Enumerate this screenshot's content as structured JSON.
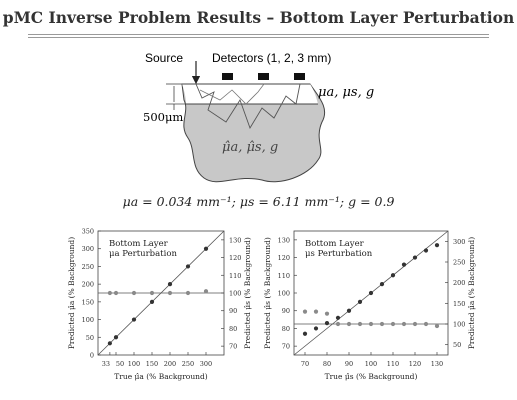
{
  "slide": {
    "title": "pMC Inverse Problem Results – Bottom Layer Perturbation",
    "params": "μa = 0.034 mm⁻¹; μs = 6.11 mm⁻¹; g = 0.9"
  },
  "diagram": {
    "source_label": "Source",
    "detectors_label": "Detectors (1, 2, 3 mm)",
    "top_layer_label": "μa, μs, g",
    "depth_label": "500μm",
    "bottom_layer_label": "μ̂a, μ̂s, g"
  },
  "colors": {
    "points_primary": "#333333",
    "points_secondary": "#8a8a8a",
    "tissue_fill": "#c8c8c8",
    "frame": "#444444"
  },
  "chart_data": [
    {
      "type": "scatter",
      "title": "Bottom Layer μa Perturbation",
      "xlabel": "True μ̂a (% Background)",
      "ylabel_left": "Predicted μ̂a (% Background)",
      "ylabel_right": "Predicted μ̂s (% Background)",
      "xlim": [
        0,
        350
      ],
      "ylim_left": [
        0,
        350
      ],
      "ylim_right": [
        65,
        135
      ],
      "x_ticks": [
        "33",
        "50",
        "100",
        "150",
        "200",
        "250",
        "300"
      ],
      "x_tick_values": [
        33,
        50,
        100,
        150,
        200,
        250,
        300
      ],
      "y_ticks_left": [
        0,
        50,
        100,
        150,
        200,
        250,
        300,
        350
      ],
      "y_ticks_right": [
        70,
        80,
        90,
        100,
        110,
        120,
        130
      ],
      "identity_line": true,
      "reference_line_right": 100,
      "series": [
        {
          "axis": "left",
          "x": [
            33,
            50,
            100,
            150,
            200,
            250,
            300
          ],
          "y": [
            33,
            50,
            100,
            150,
            200,
            250,
            300
          ]
        },
        {
          "axis": "right",
          "x": [
            33,
            50,
            100,
            150,
            200,
            250,
            300
          ],
          "y": [
            100,
            100,
            100,
            100,
            100,
            100,
            101
          ]
        }
      ]
    },
    {
      "type": "scatter",
      "title": "Bottom Layer μs Perturbation",
      "xlabel": "True μ̂s (% Background)",
      "ylabel_left": "Predicted μ̂s (% Background)",
      "ylabel_right": "Predicted μ̂a (% Background)",
      "xlim": [
        65,
        135
      ],
      "ylim_left": [
        65,
        135
      ],
      "ylim_right": [
        25,
        325
      ],
      "x_ticks": [
        "70",
        "80",
        "90",
        "100",
        "110",
        "120",
        "130"
      ],
      "x_tick_values": [
        70,
        80,
        90,
        100,
        110,
        120,
        130
      ],
      "y_ticks_left": [
        70,
        80,
        90,
        100,
        110,
        120,
        130
      ],
      "y_ticks_right": [
        50,
        100,
        150,
        200,
        250,
        300
      ],
      "identity_line": true,
      "reference_line_right": 100,
      "series": [
        {
          "axis": "left",
          "x": [
            70,
            75,
            80,
            85,
            90,
            95,
            100,
            105,
            110,
            115,
            120,
            125,
            130
          ],
          "y": [
            77,
            80,
            83,
            86,
            90,
            95,
            100,
            105,
            110,
            116,
            120,
            124,
            127
          ]
        },
        {
          "axis": "right",
          "x": [
            70,
            75,
            80,
            85,
            90,
            95,
            100,
            105,
            110,
            115,
            120,
            125,
            130
          ],
          "y": [
            130,
            130,
            125,
            100,
            100,
            100,
            100,
            100,
            100,
            100,
            100,
            100,
            95
          ]
        }
      ]
    }
  ]
}
